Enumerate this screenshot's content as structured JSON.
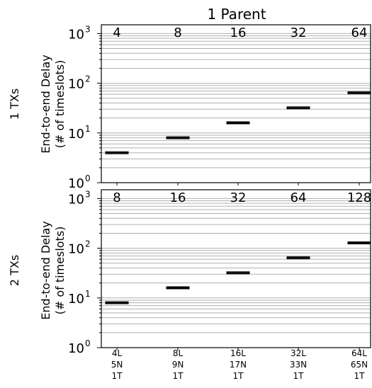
{
  "figure": {
    "title": "1 Parent",
    "row_labels": [
      "1 TXs",
      "2 TXs"
    ],
    "ylabel_line1": "End-to-end Delay",
    "ylabel_line2": "(# of timeslots)"
  },
  "chart_data": [
    {
      "type": "box",
      "title": "1 Parent",
      "row_label": "1 TXs",
      "ylabel": "End-to-end Delay (# of timeslots)",
      "yscale": "log",
      "ylim": [
        1,
        1500
      ],
      "ytick_labels": [
        {
          "value": 1,
          "label": "10",
          "exp": "0"
        },
        {
          "value": 10,
          "label": "10",
          "exp": "1"
        },
        {
          "value": 100,
          "label": "10",
          "exp": "2"
        },
        {
          "value": 1000,
          "label": "10",
          "exp": "3"
        }
      ],
      "grid": "horizontal (major and minor)",
      "categories": [
        "4L 5N 1T",
        "8L 9N 1T",
        "16L 17N 1T",
        "32L 33N 1T",
        "64L 65N 1T"
      ],
      "values": [
        4,
        8,
        16,
        32,
        64
      ],
      "value_labels": [
        "4",
        "8",
        "16",
        "32",
        "64"
      ]
    },
    {
      "type": "box",
      "row_label": "2 TXs",
      "ylabel": "End-to-end Delay (# of timeslots)",
      "yscale": "log",
      "ylim": [
        1,
        1500
      ],
      "ytick_labels": [
        {
          "value": 1,
          "label": "10",
          "exp": "0"
        },
        {
          "value": 10,
          "label": "10",
          "exp": "1"
        },
        {
          "value": 100,
          "label": "10",
          "exp": "2"
        },
        {
          "value": 1000,
          "label": "10",
          "exp": "3"
        }
      ],
      "grid": "horizontal (major and minor)",
      "categories": [
        "4L 5N 1T",
        "8L 9N 1T",
        "16L 17N 1T",
        "32L 33N 1T",
        "64L 65N 1T"
      ],
      "values": [
        8,
        16,
        32,
        64,
        128
      ],
      "value_labels": [
        "8",
        "16",
        "32",
        "64",
        "128"
      ]
    }
  ],
  "xtick_labels": [
    [
      "4L",
      "5N",
      "1T"
    ],
    [
      "8L",
      "9N",
      "1T"
    ],
    [
      "16L",
      "17N",
      "1T"
    ],
    [
      "32L",
      "33N",
      "1T"
    ],
    [
      "64L",
      "65N",
      "1T"
    ]
  ]
}
